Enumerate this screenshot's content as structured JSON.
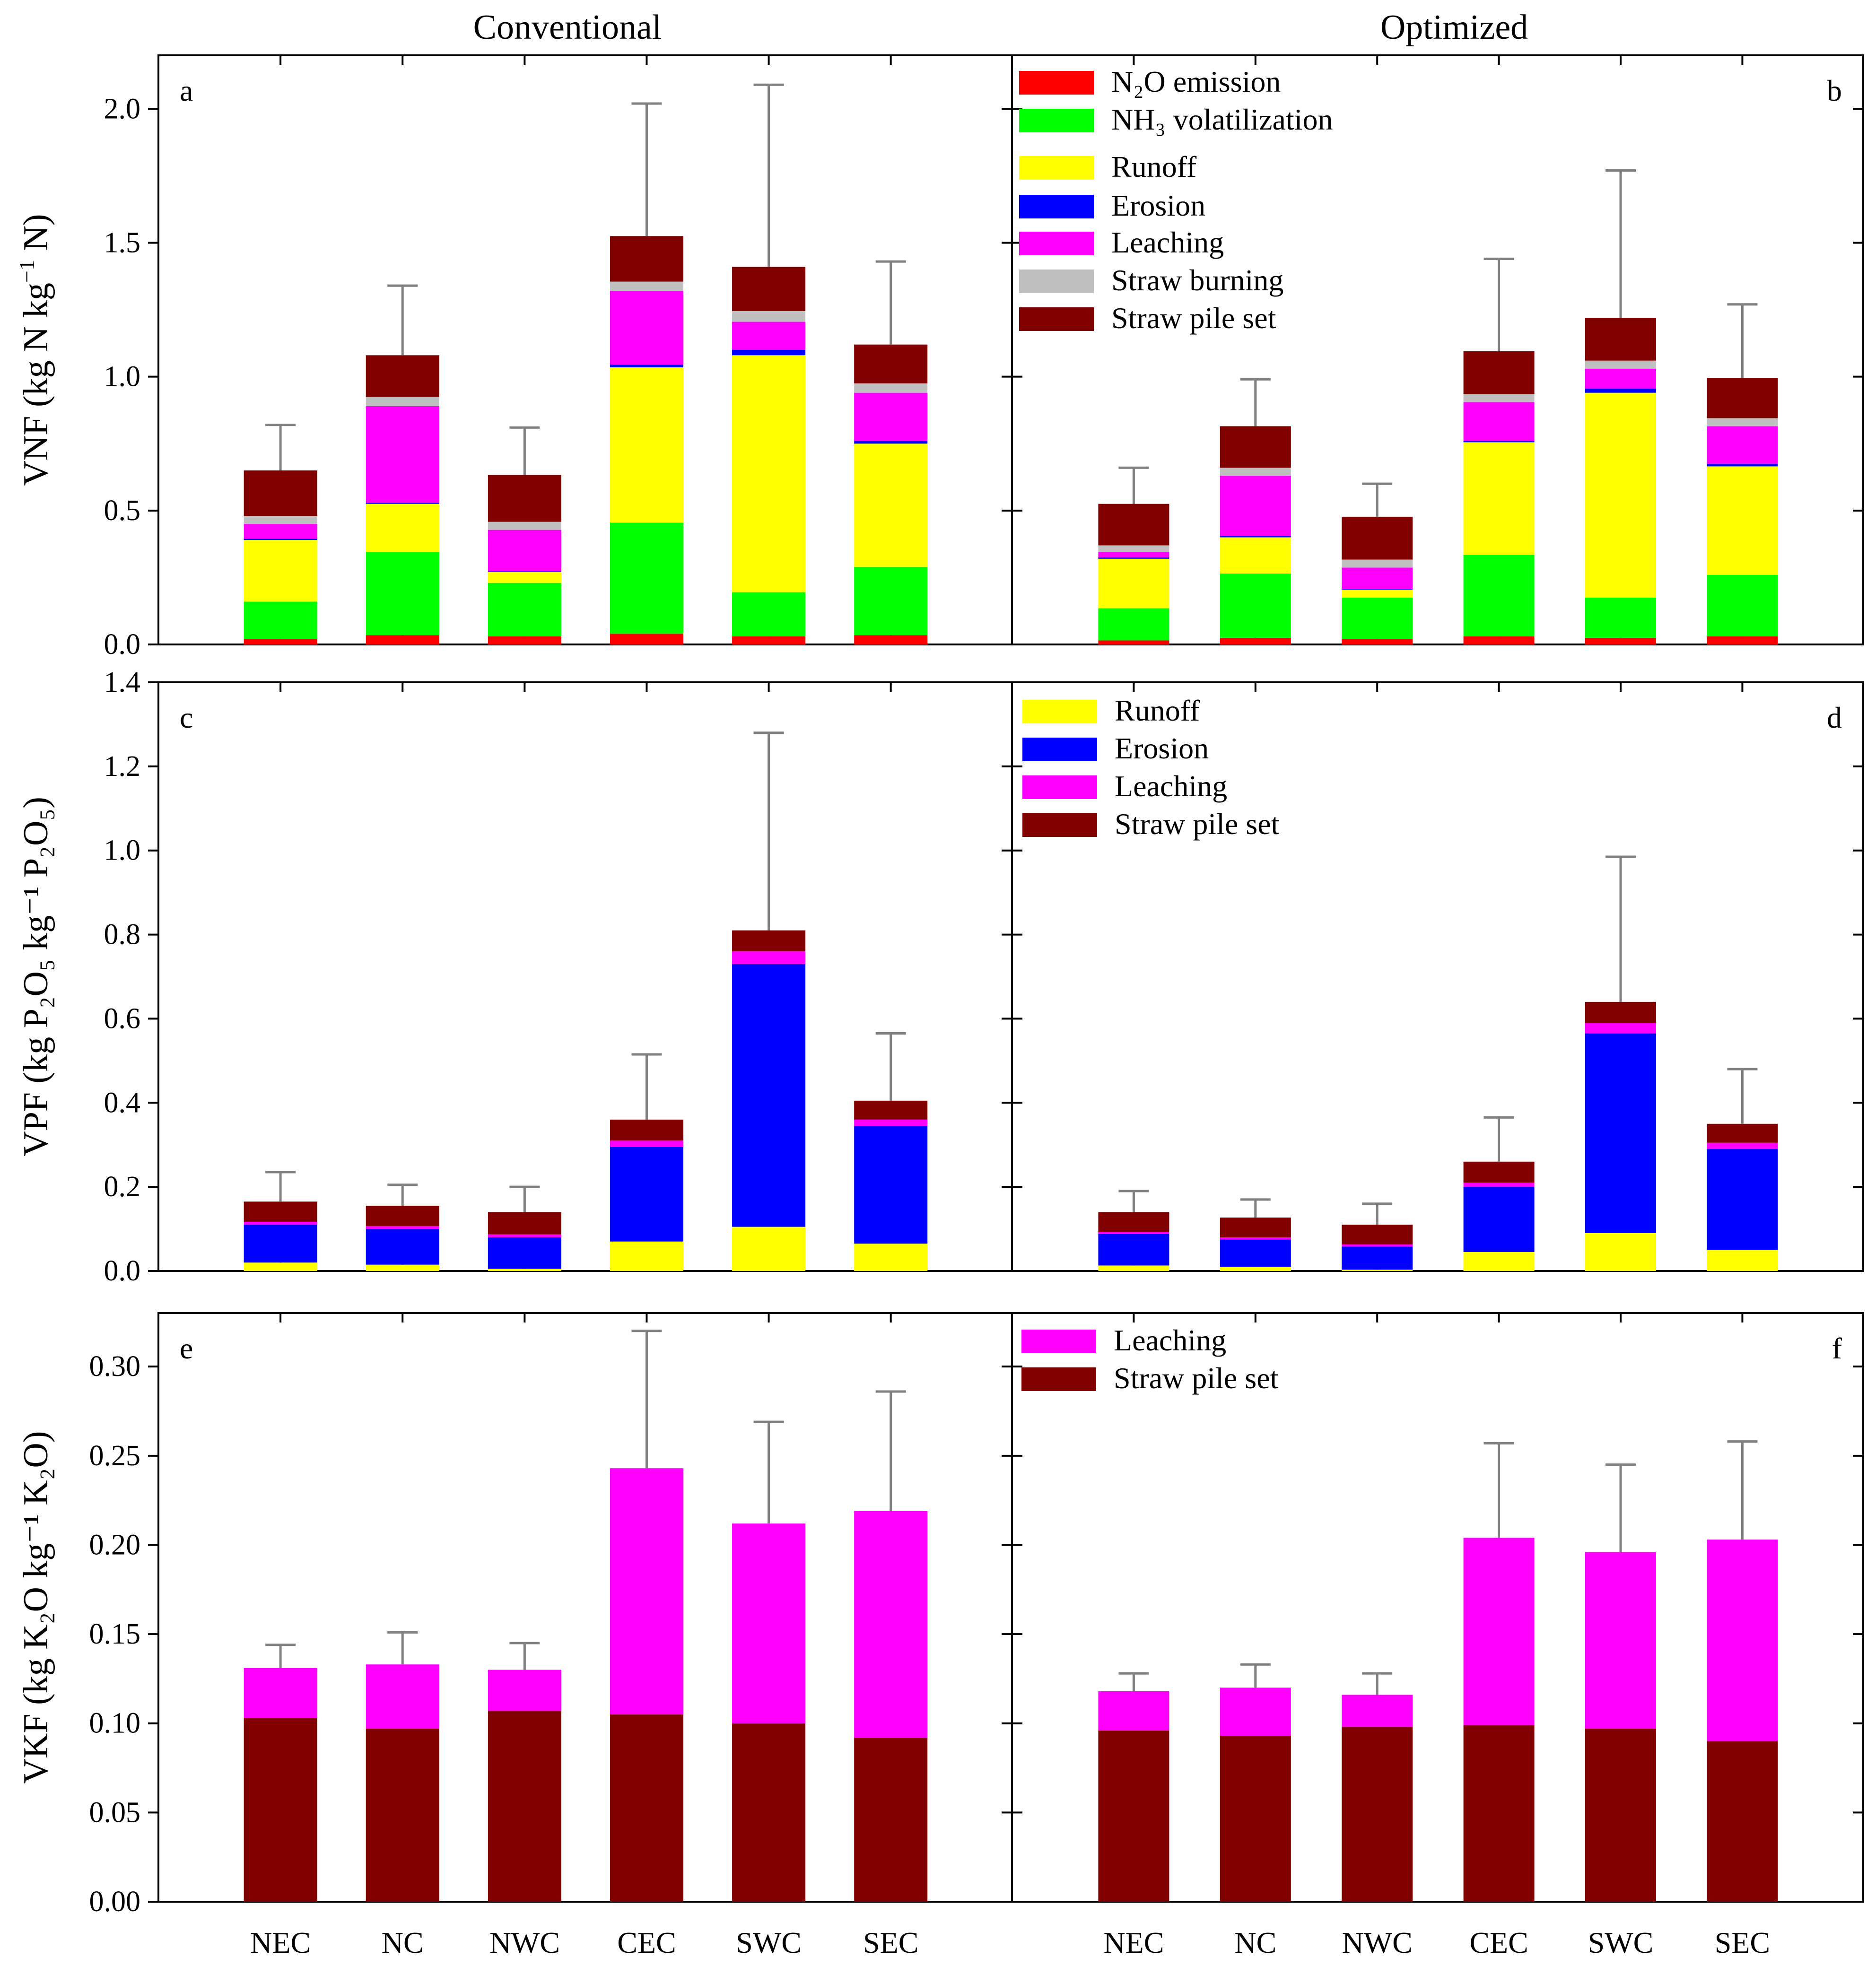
{
  "column_titles": {
    "left": "Conventional",
    "right": "Optimized"
  },
  "categories": [
    "NEC",
    "NC",
    "NWC",
    "CEC",
    "SWC",
    "SEC"
  ],
  "rows": [
    {
      "axis_title": {
        "prefix": "VNF (kg N kg",
        "sup": "−1",
        "suffix": " N)"
      },
      "ylim": [
        0,
        2.2
      ],
      "yticks": [
        0.0,
        0.5,
        1.0,
        1.5,
        2.0
      ],
      "tick_labels": [
        "0.0",
        "0.5",
        "1.0",
        "1.5",
        "2.0"
      ]
    },
    {
      "axis_title": {
        "text": "VPF (kg P₂O₅ kg⁻¹ P₂O₅)"
      },
      "ylim": [
        0,
        1.4
      ],
      "yticks": [
        0.0,
        0.2,
        0.4,
        0.6,
        0.8,
        1.0,
        1.2,
        1.4
      ],
      "tick_labels": [
        "0.0",
        "0.2",
        "0.4",
        "0.6",
        "0.8",
        "1.0",
        "1.2",
        "1.4"
      ]
    },
    {
      "axis_title": {
        "text": "VKF (kg K₂O kg⁻¹ K₂O)"
      },
      "ylim": [
        0,
        0.33
      ],
      "yticks": [
        0.0,
        0.05,
        0.1,
        0.15,
        0.2,
        0.25,
        0.3
      ],
      "tick_labels": [
        "0.00",
        "0.05",
        "0.10",
        "0.15",
        "0.20",
        "0.25",
        "0.30"
      ]
    }
  ],
  "legends": {
    "b": [
      {
        "label": "N₂O emission",
        "color": "#ff0000"
      },
      {
        "label": "NH₃ volatilization",
        "color": "#00ff00"
      },
      {
        "label": "Runoff",
        "color": "#ffff00"
      },
      {
        "label": "Erosion",
        "color": "#0000ff"
      },
      {
        "label": "Leaching",
        "color": "#ff00ff"
      },
      {
        "label": "Straw burning",
        "color": "#c0c0c0"
      },
      {
        "label": "Straw pile set",
        "color": "#800000"
      }
    ],
    "d": [
      {
        "label": "Runoff",
        "color": "#ffff00"
      },
      {
        "label": "Erosion",
        "color": "#0000ff"
      },
      {
        "label": "Leaching",
        "color": "#ff00ff"
      },
      {
        "label": "Straw pile set",
        "color": "#800000"
      }
    ],
    "f": [
      {
        "label": "Leaching",
        "color": "#ff00ff"
      },
      {
        "label": "Straw pile set",
        "color": "#800000"
      }
    ]
  },
  "chart_data": [
    {
      "panel": "a",
      "type": "bar",
      "stacked": true,
      "title": "Conventional",
      "ylabel": "VNF (kg N kg⁻¹ N)",
      "ylim": [
        0,
        2.2
      ],
      "categories": [
        "NEC",
        "NC",
        "NWC",
        "CEC",
        "SWC",
        "SEC"
      ],
      "series": [
        {
          "name": "N₂O emission",
          "color": "#ff0000",
          "values": [
            0.02,
            0.035,
            0.03,
            0.04,
            0.03,
            0.035
          ]
        },
        {
          "name": "NH₃ volatilization",
          "color": "#00ff00",
          "values": [
            0.14,
            0.31,
            0.2,
            0.415,
            0.165,
            0.255
          ]
        },
        {
          "name": "Runoff",
          "color": "#ffff00",
          "values": [
            0.23,
            0.18,
            0.04,
            0.58,
            0.885,
            0.46
          ]
        },
        {
          "name": "Erosion",
          "color": "#0000ff",
          "values": [
            0.005,
            0.005,
            0.003,
            0.01,
            0.02,
            0.01
          ]
        },
        {
          "name": "Leaching",
          "color": "#ff00ff",
          "values": [
            0.055,
            0.36,
            0.155,
            0.275,
            0.105,
            0.18
          ]
        },
        {
          "name": "Straw burning",
          "color": "#c0c0c0",
          "values": [
            0.03,
            0.035,
            0.03,
            0.035,
            0.04,
            0.035
          ]
        },
        {
          "name": "Straw pile set",
          "color": "#800000",
          "values": [
            0.17,
            0.155,
            0.175,
            0.17,
            0.165,
            0.145
          ]
        }
      ],
      "error_top": [
        0.82,
        1.34,
        0.81,
        2.02,
        2.09,
        1.43
      ]
    },
    {
      "panel": "b",
      "type": "bar",
      "stacked": true,
      "title": "Optimized",
      "ylabel": "VNF (kg N kg⁻¹ N)",
      "ylim": [
        0,
        2.2
      ],
      "categories": [
        "NEC",
        "NC",
        "NWC",
        "CEC",
        "SWC",
        "SEC"
      ],
      "series": [
        {
          "name": "N₂O emission",
          "color": "#ff0000",
          "values": [
            0.015,
            0.025,
            0.02,
            0.03,
            0.025,
            0.03
          ]
        },
        {
          "name": "NH₃ volatilization",
          "color": "#00ff00",
          "values": [
            0.12,
            0.24,
            0.155,
            0.305,
            0.15,
            0.23
          ]
        },
        {
          "name": "Runoff",
          "color": "#ffff00",
          "values": [
            0.185,
            0.135,
            0.03,
            0.42,
            0.765,
            0.405
          ]
        },
        {
          "name": "Erosion",
          "color": "#0000ff",
          "values": [
            0.005,
            0.005,
            0.002,
            0.005,
            0.015,
            0.01
          ]
        },
        {
          "name": "Leaching",
          "color": "#ff00ff",
          "values": [
            0.02,
            0.225,
            0.08,
            0.145,
            0.075,
            0.14
          ]
        },
        {
          "name": "Straw burning",
          "color": "#c0c0c0",
          "values": [
            0.025,
            0.03,
            0.03,
            0.03,
            0.03,
            0.03
          ]
        },
        {
          "name": "Straw pile set",
          "color": "#800000",
          "values": [
            0.155,
            0.155,
            0.16,
            0.16,
            0.16,
            0.15
          ]
        }
      ],
      "error_top": [
        0.66,
        0.99,
        0.6,
        1.44,
        1.77,
        1.27
      ]
    },
    {
      "panel": "c",
      "type": "bar",
      "stacked": true,
      "title": "Conventional",
      "ylabel": "VPF (kg P₂O₅ kg⁻¹ P₂O₅)",
      "ylim": [
        0,
        1.4
      ],
      "categories": [
        "NEC",
        "NC",
        "NWC",
        "CEC",
        "SWC",
        "SEC"
      ],
      "series": [
        {
          "name": "Runoff",
          "color": "#ffff00",
          "values": [
            0.02,
            0.015,
            0.005,
            0.07,
            0.105,
            0.065
          ]
        },
        {
          "name": "Erosion",
          "color": "#0000ff",
          "values": [
            0.09,
            0.085,
            0.075,
            0.225,
            0.625,
            0.28
          ]
        },
        {
          "name": "Leaching",
          "color": "#ff00ff",
          "values": [
            0.007,
            0.007,
            0.007,
            0.015,
            0.03,
            0.015
          ]
        },
        {
          "name": "Straw pile set",
          "color": "#800000",
          "values": [
            0.048,
            0.048,
            0.053,
            0.05,
            0.05,
            0.045
          ]
        }
      ],
      "error_top": [
        0.235,
        0.205,
        0.2,
        0.515,
        1.28,
        0.565
      ]
    },
    {
      "panel": "d",
      "type": "bar",
      "stacked": true,
      "title": "Optimized",
      "ylabel": "VPF (kg P₂O₅ kg⁻¹ P₂O₅)",
      "ylim": [
        0,
        1.4
      ],
      "categories": [
        "NEC",
        "NC",
        "NWC",
        "CEC",
        "SWC",
        "SEC"
      ],
      "series": [
        {
          "name": "Runoff",
          "color": "#ffff00",
          "values": [
            0.013,
            0.01,
            0.003,
            0.045,
            0.09,
            0.05
          ]
        },
        {
          "name": "Erosion",
          "color": "#0000ff",
          "values": [
            0.075,
            0.065,
            0.055,
            0.155,
            0.475,
            0.24
          ]
        },
        {
          "name": "Leaching",
          "color": "#ff00ff",
          "values": [
            0.005,
            0.005,
            0.005,
            0.01,
            0.025,
            0.015
          ]
        },
        {
          "name": "Straw pile set",
          "color": "#800000",
          "values": [
            0.047,
            0.047,
            0.047,
            0.05,
            0.05,
            0.045
          ]
        }
      ],
      "error_top": [
        0.19,
        0.17,
        0.16,
        0.365,
        0.985,
        0.48
      ]
    },
    {
      "panel": "e",
      "type": "bar",
      "stacked": true,
      "title": "Conventional",
      "ylabel": "VKF (kg K₂O kg⁻¹ K₂O)",
      "ylim": [
        0,
        0.33
      ],
      "categories": [
        "NEC",
        "NC",
        "NWC",
        "CEC",
        "SWC",
        "SEC"
      ],
      "series": [
        {
          "name": "Straw pile set",
          "color": "#800000",
          "values": [
            0.103,
            0.097,
            0.107,
            0.105,
            0.1,
            0.092
          ]
        },
        {
          "name": "Leaching",
          "color": "#ff00ff",
          "values": [
            0.028,
            0.036,
            0.023,
            0.138,
            0.112,
            0.127
          ]
        }
      ],
      "error_top": [
        0.144,
        0.151,
        0.145,
        0.32,
        0.269,
        0.286
      ]
    },
    {
      "panel": "f",
      "type": "bar",
      "stacked": true,
      "title": "Optimized",
      "ylabel": "VKF (kg K₂O kg⁻¹ K₂O)",
      "ylim": [
        0,
        0.33
      ],
      "categories": [
        "NEC",
        "NC",
        "NWC",
        "CEC",
        "SWC",
        "SEC"
      ],
      "series": [
        {
          "name": "Straw pile set",
          "color": "#800000",
          "values": [
            0.096,
            0.093,
            0.098,
            0.099,
            0.097,
            0.09
          ]
        },
        {
          "name": "Leaching",
          "color": "#ff00ff",
          "values": [
            0.022,
            0.027,
            0.018,
            0.105,
            0.099,
            0.113
          ]
        }
      ],
      "error_top": [
        0.128,
        0.133,
        0.128,
        0.257,
        0.245,
        0.258
      ]
    }
  ]
}
